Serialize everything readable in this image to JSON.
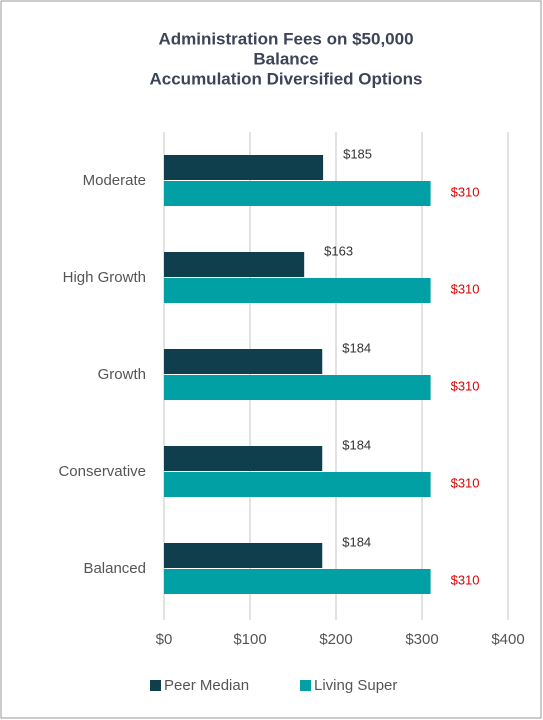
{
  "chart_data": {
    "type": "barh",
    "title_lines": [
      "Administration Fees on $50,000",
      "Balance",
      "Accumulation Diversified Options"
    ],
    "categories": [
      "Moderate",
      "High Growth",
      "Growth",
      "Conservative",
      "Balanced"
    ],
    "series": [
      {
        "name": "Peer Median",
        "color": "#0f3f4c",
        "label_color": "#333333",
        "values": [
          185,
          163,
          184,
          184,
          184
        ],
        "value_labels": [
          "$185",
          "$163",
          "$184",
          "$184",
          "$184"
        ]
      },
      {
        "name": "Living Super",
        "color": "#00a0a4",
        "label_color": "#e00000",
        "values": [
          310,
          310,
          310,
          310,
          310
        ],
        "value_labels": [
          "$310",
          "$310",
          "$310",
          "$310",
          "$310"
        ]
      }
    ],
    "xlim": [
      0,
      400
    ],
    "xticks": [
      {
        "value": 0,
        "label": "$0"
      },
      {
        "value": 100,
        "label": "$100"
      },
      {
        "value": 200,
        "label": "$200"
      },
      {
        "value": 300,
        "label": "$300"
      },
      {
        "value": 400,
        "label": "$400"
      }
    ],
    "grid": true,
    "legend": "bottom"
  }
}
